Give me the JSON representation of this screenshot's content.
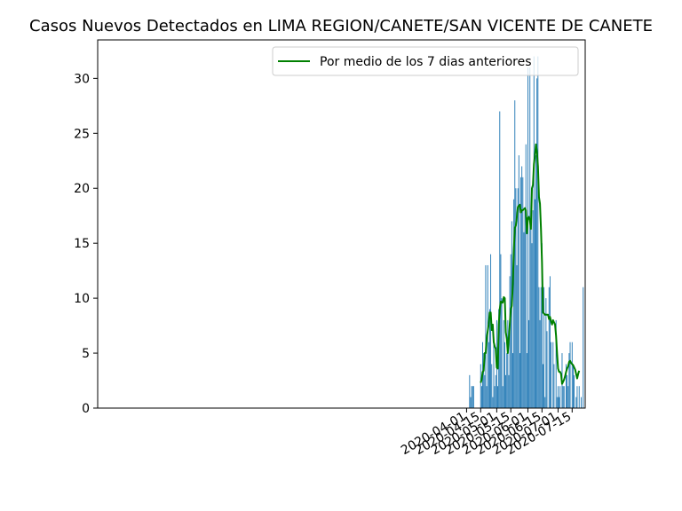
{
  "chart_data": {
    "type": "bar",
    "title": "Casos Nuevos Detectados en LIMA REGION/CANETE/SAN VICENTE DE CANETE",
    "xlabel": "",
    "ylabel": "",
    "x_start_date": "2020-04-01",
    "xlim": [
      "2019-03-31",
      "2020-07-28"
    ],
    "ylim": [
      0,
      33.5
    ],
    "x_ticks": [
      "2020-04-01",
      "2020-04-15",
      "2020-05-01",
      "2020-05-15",
      "2020-06-01",
      "2020-06-15",
      "2020-07-01",
      "2020-07-15"
    ],
    "y_ticks": [
      0,
      5,
      10,
      15,
      20,
      25,
      30
    ],
    "grid": false,
    "legend_position": "top-right",
    "bar_color": "#1f77b4",
    "line_color": "#008000",
    "series": [
      {
        "name": "",
        "kind": "bar",
        "values": [
          0,
          0,
          0,
          3,
          1,
          2,
          2,
          2,
          0,
          0,
          0,
          0,
          0,
          0,
          4,
          2,
          6,
          5,
          3,
          13,
          2,
          13,
          6,
          9,
          14,
          4,
          1,
          6,
          2,
          3,
          8,
          2,
          9,
          27,
          14,
          10,
          2,
          8,
          6,
          3,
          5,
          8,
          3,
          12,
          14,
          17,
          5,
          19,
          28,
          20,
          13,
          20,
          23,
          5,
          21,
          22,
          21,
          16,
          18,
          24,
          5,
          31,
          8,
          31,
          18,
          15,
          18,
          32,
          19,
          23,
          30,
          32,
          11,
          8,
          11,
          15,
          4,
          11,
          1,
          10,
          7,
          0,
          11,
          12,
          6,
          0,
          6,
          4,
          0,
          8,
          1,
          2,
          1,
          2,
          0,
          5,
          2,
          2,
          0,
          4,
          3,
          2,
          5,
          6,
          0,
          6,
          4,
          3,
          0,
          1,
          2,
          0,
          2,
          0,
          1,
          0,
          11
        ]
      },
      {
        "name": "Por medio de los 7 dias anteriores",
        "kind": "line",
        "start_index": 14,
        "values": [
          2.3,
          2.6,
          3.3,
          3.4,
          5.0,
          5.0,
          6.4,
          7.0,
          7.6,
          8.7,
          8.7,
          7.1,
          7.6,
          6.0,
          5.6,
          5.4,
          3.7,
          3.6,
          7.6,
          9.0,
          9.7,
          9.6,
          9.6,
          10.1,
          10.0,
          6.9,
          6.3,
          5.0,
          6.3,
          7.7,
          9.0,
          9.3,
          11.3,
          14.4,
          16.4,
          16.6,
          17.4,
          18.3,
          18.4,
          18.5,
          17.8,
          18.0,
          18.0,
          18.1,
          18.2,
          18.0,
          15.9,
          17.3,
          17.4,
          17.1,
          16.3,
          20.0,
          20.3,
          22.2,
          23.0,
          24.0,
          23.3,
          22.0,
          19.2,
          18.6,
          16.3,
          13.3,
          8.7,
          8.6,
          8.5,
          8.5,
          8.5,
          8.5,
          8.1,
          8.3,
          7.9,
          7.6,
          8.0,
          7.8,
          7.6,
          6.6,
          5.0,
          3.6,
          3.3,
          3.3,
          3.1,
          2.2,
          2.4,
          2.6,
          2.9,
          3.3,
          3.6,
          3.8,
          4.2,
          4.3,
          4.1,
          4.0,
          3.9,
          3.7,
          3.5,
          3.1,
          2.7,
          3.1,
          3.4
        ]
      }
    ]
  }
}
